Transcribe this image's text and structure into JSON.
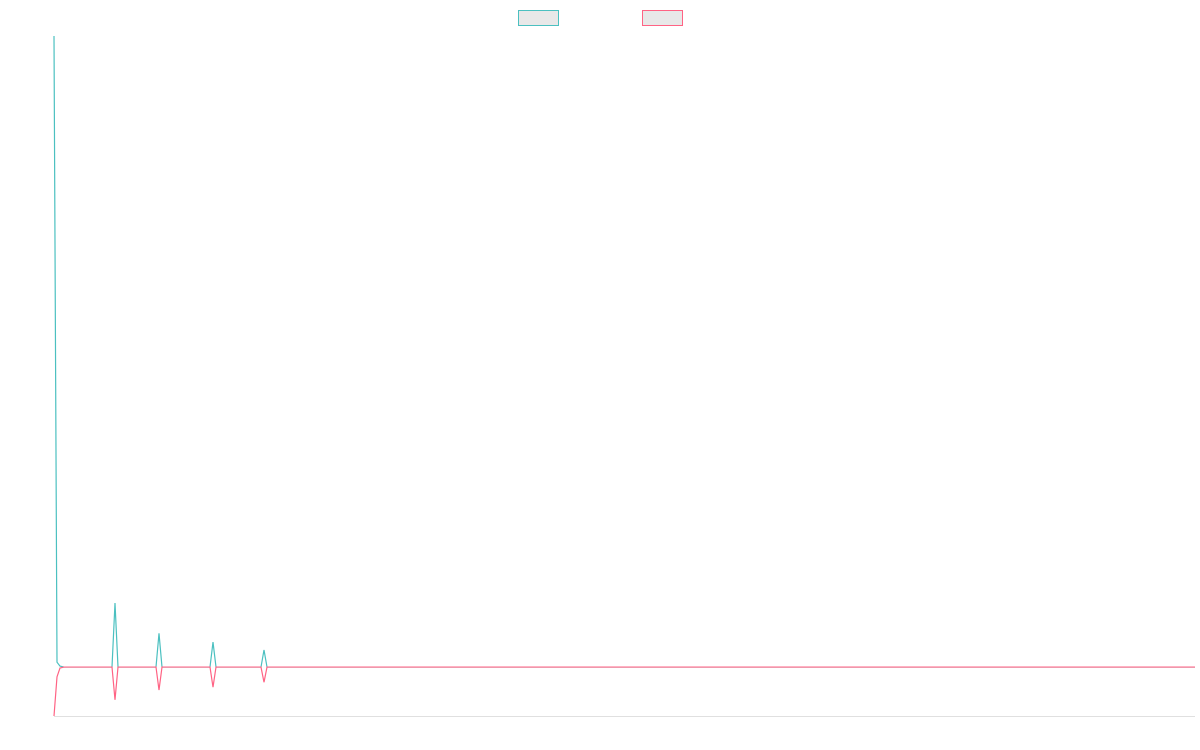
{
  "chart_data": {
    "type": "line",
    "x": [
      0,
      3,
      6,
      10,
      58,
      61,
      64,
      102,
      105,
      108,
      156,
      159,
      162,
      207,
      210,
      213,
      1141
    ],
    "xlim": [
      0,
      1141
    ],
    "ylim": [
      -1,
      12.9
    ],
    "series": [
      {
        "color": "#4bc0c0",
        "values": [
          12.9,
          0.1,
          0.02,
          0,
          0,
          1.31,
          0,
          0,
          0.69,
          0,
          0,
          0.51,
          0,
          0,
          0.35,
          0,
          0
        ]
      },
      {
        "color": "#ff6384",
        "values": [
          -1,
          -0.2,
          -0.02,
          0,
          0,
          -0.67,
          0,
          0,
          -0.47,
          0,
          0,
          -0.41,
          0,
          0,
          -0.31,
          0,
          0
        ]
      }
    ]
  }
}
